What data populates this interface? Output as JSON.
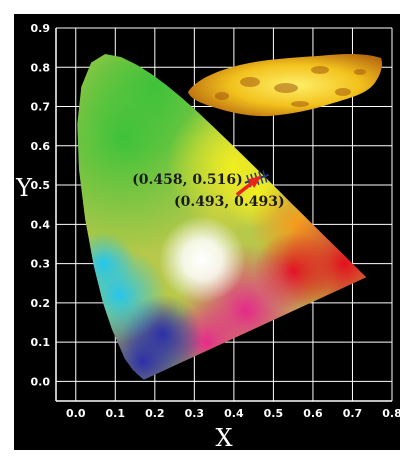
{
  "chart_data": {
    "type": "scatter",
    "title": "",
    "xlabel": "X",
    "ylabel": "Y",
    "xlim": [
      -0.05,
      0.8
    ],
    "ylim": [
      -0.05,
      0.9
    ],
    "x_ticks": [
      0.0,
      0.1,
      0.2,
      0.3,
      0.4,
      0.5,
      0.6,
      0.7,
      0.8
    ],
    "y_ticks": [
      0.0,
      0.1,
      0.2,
      0.3,
      0.4,
      0.5,
      0.6,
      0.7,
      0.8,
      0.9
    ],
    "x_tick_labels": [
      "0.0",
      "0.1",
      "0.2",
      "0.3",
      "0.4",
      "0.5",
      "0.6",
      "0.7",
      "0.8"
    ],
    "y_tick_labels": [
      "0.0",
      "0.1",
      "0.2",
      "0.3",
      "0.4",
      "0.5",
      "0.6",
      "0.7",
      "0.8",
      "0.9"
    ],
    "grid": true,
    "background": "CIE 1931 chromaticity diagram",
    "points": [
      {
        "label": "(0.458, 0.516)",
        "x": 0.458,
        "y": 0.516
      },
      {
        "label": "(0.493, 0.493)",
        "x": 0.493,
        "y": 0.493
      }
    ],
    "arrow": {
      "from_index": 0,
      "to_index": 1,
      "color": "#e8241c"
    },
    "colors": {
      "frame": "#000000",
      "grid": "#ffffff",
      "point_marker": "#1f3a7a",
      "arrow": "#e8241c",
      "flame": "#f0c020"
    }
  }
}
